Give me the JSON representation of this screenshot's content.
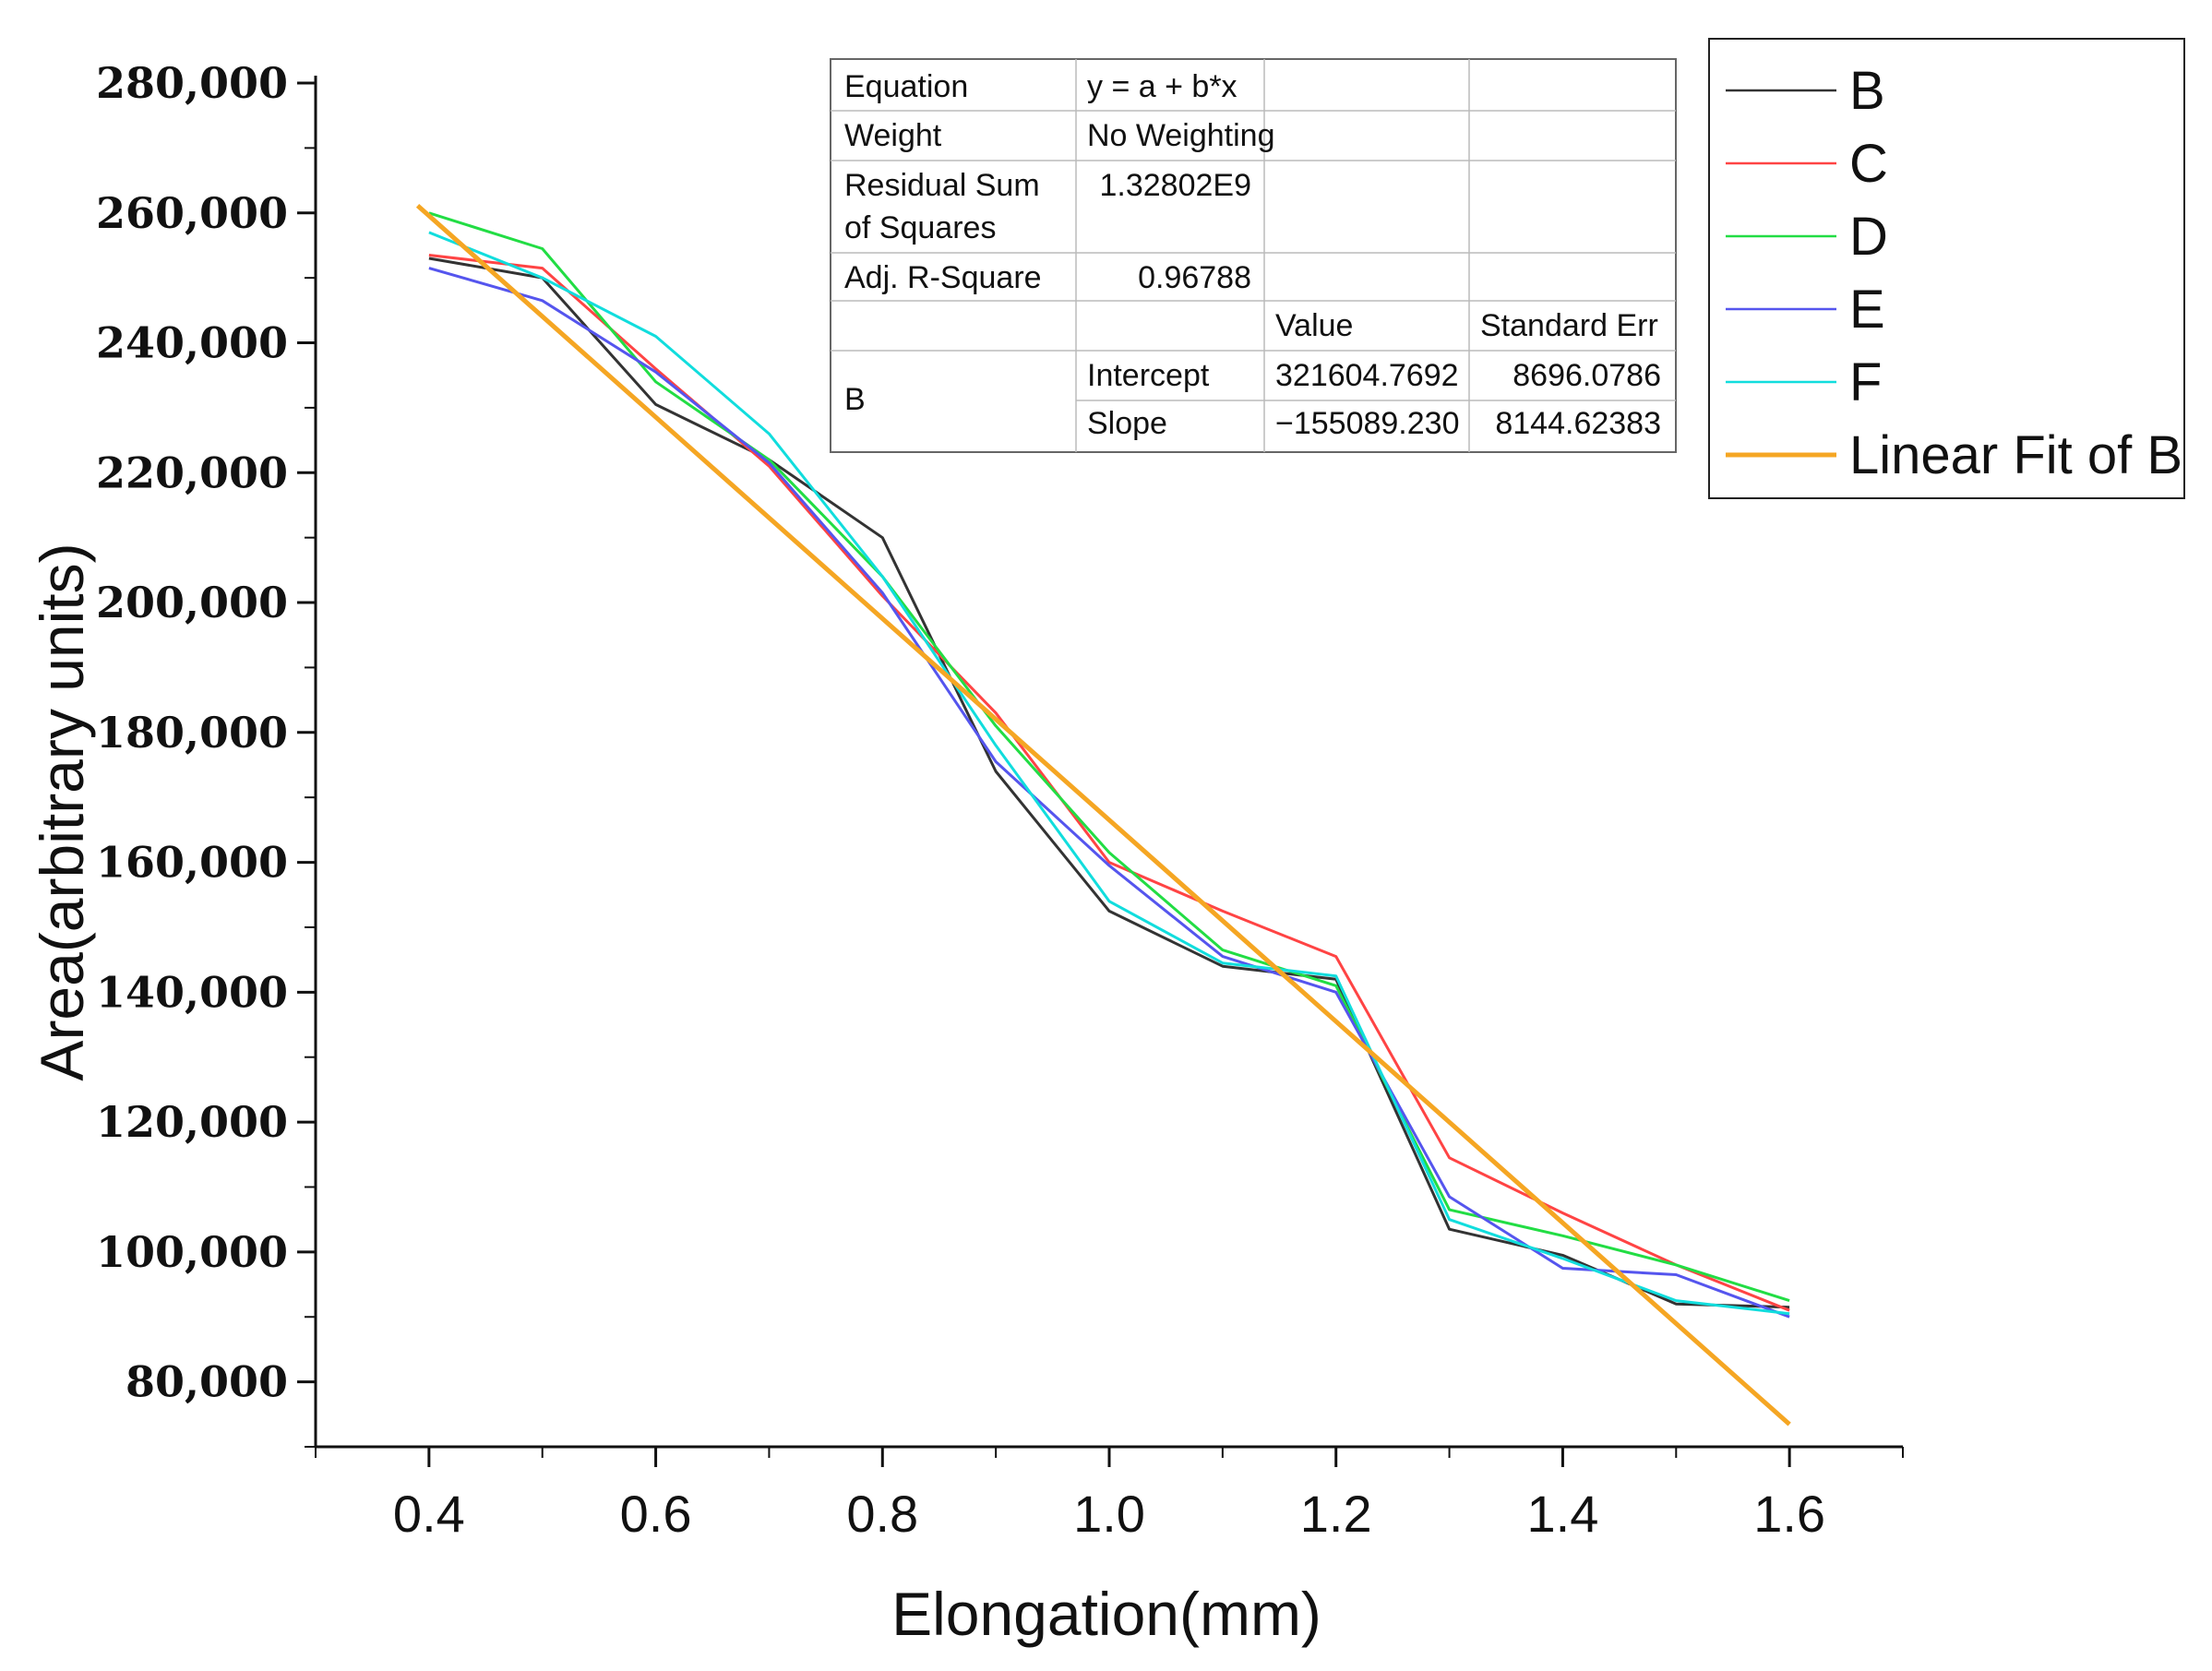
{
  "chart_data": {
    "type": "line",
    "title": "",
    "xlabel": "Elongation(mm)",
    "ylabel": "Area(arbitrary units)",
    "xlim": [
      0.3,
      1.7
    ],
    "ylim": [
      70000,
      280000
    ],
    "x_ticks": [
      "0.4",
      "0.6",
      "0.8",
      "1.0",
      "1.2",
      "1.4",
      "1.6"
    ],
    "y_ticks": [
      "80,000",
      "100,000",
      "120,000",
      "140,000",
      "160,000",
      "180,000",
      "200,000",
      "220,000",
      "240,000",
      "260,000",
      "280,000"
    ],
    "grid": false,
    "legend_position": "top-right",
    "x": [
      0.4,
      0.5,
      0.6,
      0.7,
      0.8,
      0.9,
      1.0,
      1.1,
      1.2,
      1.3,
      1.4,
      1.5,
      1.6
    ],
    "series": [
      {
        "name": "B",
        "color": "#333333",
        "values": [
          253000,
          250000,
          230500,
          222000,
          210000,
          174000,
          152500,
          144000,
          142000,
          103500,
          99500,
          92000,
          91500
        ]
      },
      {
        "name": "C",
        "color": "#ff4444",
        "values": [
          253500,
          251500,
          236000,
          221000,
          201000,
          183000,
          160000,
          152500,
          145500,
          114500,
          106000,
          98000,
          91000
        ]
      },
      {
        "name": "D",
        "color": "#22dd44",
        "values": [
          260000,
          254500,
          234000,
          222000,
          204000,
          181000,
          161500,
          146500,
          141000,
          106500,
          102500,
          98000,
          92500
        ]
      },
      {
        "name": "E",
        "color": "#5555ee",
        "values": [
          251500,
          246500,
          235500,
          221500,
          201500,
          175500,
          159500,
          145500,
          140000,
          108500,
          97500,
          96500,
          90000
        ]
      },
      {
        "name": "F",
        "color": "#11dddd",
        "values": [
          257000,
          250000,
          241000,
          226000,
          204000,
          178000,
          154000,
          144500,
          142500,
          105000,
          99000,
          92500,
          90500
        ]
      }
    ],
    "linear_fit": {
      "name": "Linear Fit of B",
      "color": "#f5a623",
      "x_range": [
        0.39,
        1.6
      ],
      "intercept": 321604.7692,
      "slope": -155089.23
    }
  },
  "stats_table": {
    "equation_label": "Equation",
    "equation_value": "y = a + b*x",
    "weight_label": "Weight",
    "weight_value": "No Weighting",
    "rss_label_line1": "Residual Sum",
    "rss_label_line2": "of Squares",
    "rss_value": "1.32802E9",
    "adjr_label": "Adj. R-Square",
    "adjr_value": "0.96788",
    "value_header": "Value",
    "stderr_header": "Standard Err",
    "row_label": "B",
    "intercept_label": "Intercept",
    "intercept_value": "321604.7692",
    "intercept_err": "8696.0786",
    "slope_label": "Slope",
    "slope_value": "−155089.230",
    "slope_err": "8144.62383"
  }
}
